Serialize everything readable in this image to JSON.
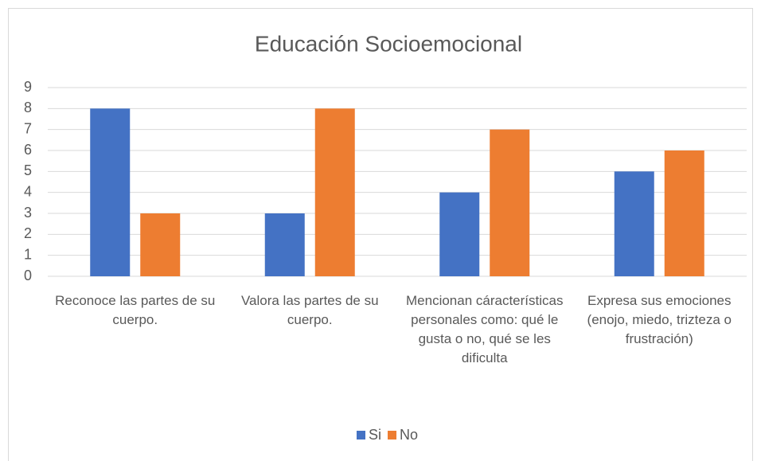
{
  "chart_data": {
    "type": "bar",
    "title": "Educación Socioemocional",
    "categories": [
      "Reconoce las partes de su cuerpo.",
      "Valora las partes de su cuerpo.",
      "Mencionan cáracterísticas personales como: qué le gusta o no, qué se les dificulta",
      "Expresa sus emociones (enojo, miedo, trizteza o frustración)"
    ],
    "series": [
      {
        "name": "Si",
        "color": "#4472c4",
        "values": [
          8,
          3,
          4,
          5
        ]
      },
      {
        "name": "No",
        "color": "#ed7d31",
        "values": [
          3,
          8,
          7,
          6
        ]
      }
    ],
    "ylim": [
      0,
      9
    ],
    "yticks": [
      0,
      1,
      2,
      3,
      4,
      5,
      6,
      7,
      8,
      9
    ],
    "grid": true,
    "legend": "bottom"
  }
}
